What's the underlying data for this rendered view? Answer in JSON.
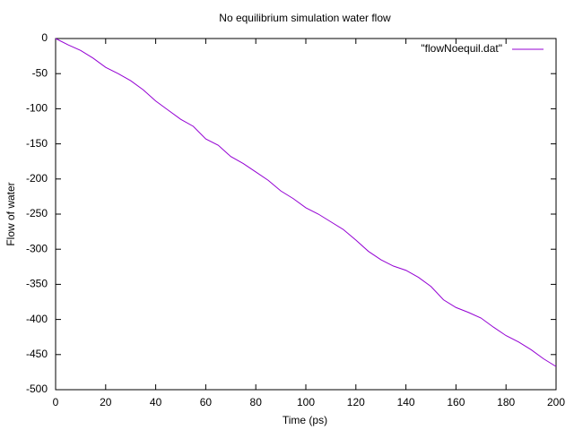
{
  "chart_data": {
    "type": "line",
    "title": "No equilibrium simulation water flow",
    "xlabel": "Time (ps)",
    "ylabel": "Flow of water",
    "x": [
      0,
      5,
      10,
      15,
      20,
      25,
      30,
      35,
      40,
      45,
      50,
      55,
      60,
      65,
      70,
      75,
      80,
      85,
      90,
      95,
      100,
      105,
      110,
      115,
      120,
      125,
      130,
      135,
      140,
      145,
      150,
      155,
      160,
      165,
      170,
      175,
      180,
      185,
      190,
      195,
      200
    ],
    "series": [
      {
        "name": "\"flowNoequil.dat\"",
        "color": "#9400d3",
        "values": [
          0,
          -9,
          -17,
          -28,
          -41,
          -50,
          -60,
          -73,
          -89,
          -102,
          -115,
          -125,
          -143,
          -152,
          -168,
          -178,
          -190,
          -202,
          -217,
          -228,
          -241,
          -250,
          -261,
          -272,
          -287,
          -303,
          -315,
          -324,
          -330,
          -340,
          -353,
          -372,
          -383,
          -390,
          -398,
          -411,
          -423,
          -432,
          -443,
          -456,
          -467
        ]
      }
    ],
    "xlim": [
      0,
      200
    ],
    "xticks": [
      0,
      20,
      40,
      60,
      80,
      100,
      120,
      140,
      160,
      180,
      200
    ],
    "ylim": [
      -500,
      0
    ],
    "yticks": [
      0,
      -50,
      -100,
      -150,
      -200,
      -250,
      -300,
      -350,
      -400,
      -450,
      -500
    ],
    "legend": "top-right"
  }
}
